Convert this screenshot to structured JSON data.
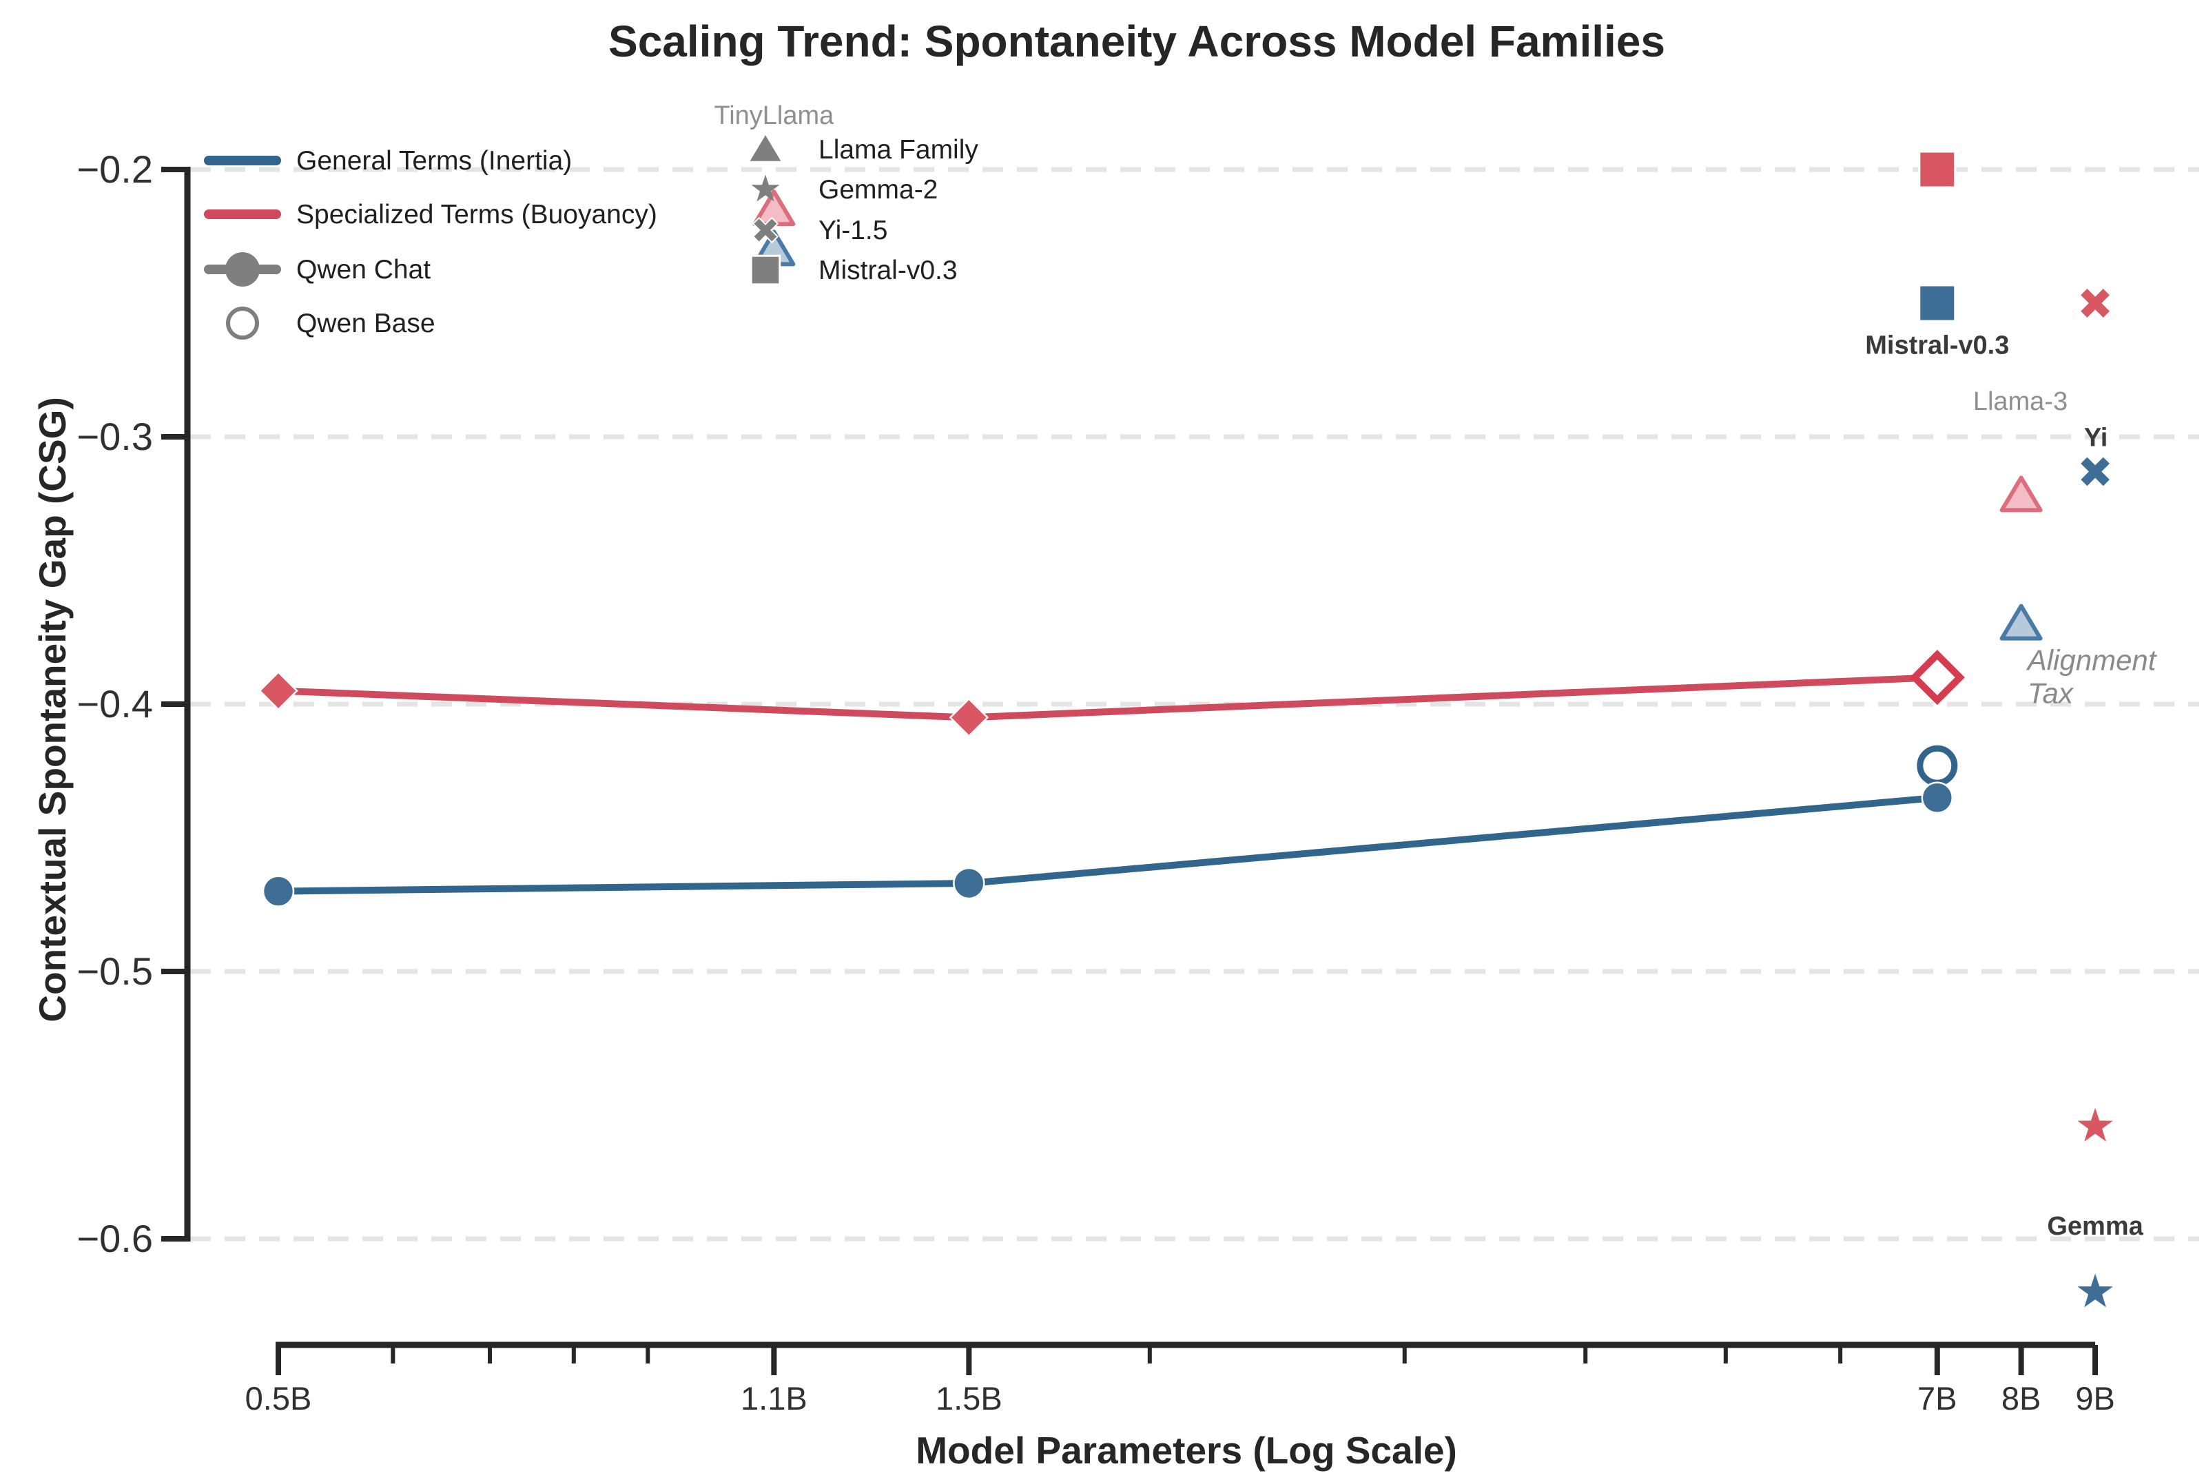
{
  "title": "Scaling Trend: Spontaneity Across Model Families",
  "colors": {
    "blue_line": "#31658C",
    "blue_marker": "#3E6E96",
    "red_line": "#D04A5E",
    "red_marker": "#D85763",
    "red_edge": "#D63C50",
    "pink_fill": "#F0A7B1",
    "pink_edge": "#DD6C7D",
    "lightblue_fill": "#9DB8CE",
    "lightblue_edge": "#4A7BA8",
    "gray_marker": "#7F7F7F",
    "gridline": "#E4E4E4",
    "spine": "#262626"
  },
  "chart_data": {
    "type": "line",
    "x_scale": "log",
    "xlabel": "Model Parameters (Log Scale)",
    "ylabel": "Contextual Spontaneity Gap (CSG)",
    "ylim": [
      -0.645,
      -0.17
    ],
    "xlim_B": [
      0.5,
      9.2
    ],
    "grid": "dashed horizontal at each y tick",
    "x_axis": {
      "ticks": [
        {
          "v": 0.5,
          "label": "0.5B"
        },
        {
          "v": 1.1,
          "label": "1.1B"
        },
        {
          "v": 1.5,
          "label": "1.5B"
        },
        {
          "v": 7,
          "label": "7B"
        },
        {
          "v": 8,
          "label": "8B"
        },
        {
          "v": 9,
          "label": "9B"
        }
      ],
      "minor_ticks": [
        0.6,
        0.7,
        0.8,
        0.9,
        2,
        3,
        4,
        5,
        6
      ]
    },
    "y_axis": {
      "ticks": [
        {
          "v": -0.2,
          "label": "−0.2"
        },
        {
          "v": -0.3,
          "label": "−0.3"
        },
        {
          "v": -0.4,
          "label": "−0.4"
        },
        {
          "v": -0.5,
          "label": "−0.5"
        },
        {
          "v": -0.6,
          "label": "−0.6"
        }
      ]
    },
    "series": [
      {
        "name": "General Terms (Inertia) — Qwen Chat",
        "color": "blue",
        "marker": "circle",
        "points": [
          [
            0.5,
            -0.47
          ],
          [
            1.5,
            -0.467
          ],
          [
            7,
            -0.435
          ]
        ]
      },
      {
        "name": "Specialized Terms (Buoyancy) — Qwen Chat",
        "color": "red",
        "marker": "diamond",
        "marker_on_last": false,
        "points": [
          [
            0.5,
            -0.395
          ],
          [
            1.5,
            -0.405
          ],
          [
            7,
            -0.39
          ]
        ]
      }
    ],
    "scatter_points": [
      {
        "name": "qwen-base-general-7b",
        "x": 7,
        "y": -0.423,
        "marker": "circle-open",
        "style": "blue"
      },
      {
        "name": "qwen-base-specialized-7b",
        "x": 7,
        "y": -0.39,
        "marker": "diamond-open",
        "style": "red"
      },
      {
        "name": "tinyllama-specialized",
        "x": 1.1,
        "y": -0.215,
        "marker": "triangle",
        "style": "pink"
      },
      {
        "name": "tinyllama-general",
        "x": 1.1,
        "y": -0.23,
        "marker": "triangle",
        "style": "lightblue"
      },
      {
        "name": "mistral-specialized",
        "x": 7,
        "y": -0.2,
        "marker": "square",
        "style": "red"
      },
      {
        "name": "mistral-general",
        "x": 7,
        "y": -0.25,
        "marker": "square",
        "style": "blue"
      },
      {
        "name": "llama3-specialized",
        "x": 8,
        "y": -0.322,
        "marker": "triangle",
        "style": "pink"
      },
      {
        "name": "llama3-general",
        "x": 8,
        "y": -0.37,
        "marker": "triangle",
        "style": "lightblue"
      },
      {
        "name": "yi-specialized",
        "x": 9,
        "y": -0.25,
        "marker": "x",
        "style": "red"
      },
      {
        "name": "yi-general",
        "x": 9,
        "y": -0.313,
        "marker": "x",
        "style": "blue"
      },
      {
        "name": "gemma-specialized",
        "x": 9,
        "y": -0.558,
        "marker": "star",
        "style": "red"
      },
      {
        "name": "gemma-general",
        "x": 9,
        "y": -0.62,
        "marker": "star",
        "style": "blue"
      }
    ],
    "annotations": [
      {
        "name": "tinyllama-label",
        "lines": [
          "TinyLlama"
        ],
        "x": 1.1,
        "y": -0.183,
        "style": "muted",
        "anchor": "middle"
      },
      {
        "name": "mistral-label",
        "lines": [
          "Mistral-v0.3"
        ],
        "x": 7,
        "y": -0.269,
        "style": "strong",
        "anchor": "middle"
      },
      {
        "name": "llama3-label",
        "lines": [
          "Llama-3"
        ],
        "x": 7.99,
        "y": -0.29,
        "style": "muted",
        "anchor": "middle"
      },
      {
        "name": "yi-label",
        "lines": [
          "Yi"
        ],
        "x": 9.01,
        "y": -0.3035,
        "style": "strong",
        "anchor": "middle"
      },
      {
        "name": "gemma-label",
        "lines": [
          "Gemma"
        ],
        "x": 9,
        "y": -0.5985,
        "style": "strong",
        "anchor": "middle"
      },
      {
        "name": "alignment-tax-label",
        "lines": [
          "Alignment",
          "Tax"
        ],
        "x": 8.08,
        "y": -0.3873,
        "style": "tax",
        "anchor": "start"
      }
    ],
    "legend_top_left": {
      "items": [
        {
          "swatch": "line",
          "color": "blue",
          "label": "General Terms (Inertia)"
        },
        {
          "swatch": "line",
          "color": "red",
          "label": "Specialized Terms (Buoyancy)"
        },
        {
          "swatch": "line-circle",
          "color": "gray",
          "label": "Qwen Chat"
        },
        {
          "swatch": "circle-open",
          "color": "gray",
          "label": "Qwen Base"
        }
      ]
    },
    "legend_model_families": {
      "items": [
        {
          "swatch": "triangle",
          "color": "gray",
          "label": "Llama Family"
        },
        {
          "swatch": "star",
          "color": "gray",
          "label": "Gemma-2"
        },
        {
          "swatch": "x",
          "color": "gray",
          "label": "Yi-1.5"
        },
        {
          "swatch": "square",
          "color": "gray",
          "label": "Mistral-v0.3"
        }
      ]
    }
  }
}
